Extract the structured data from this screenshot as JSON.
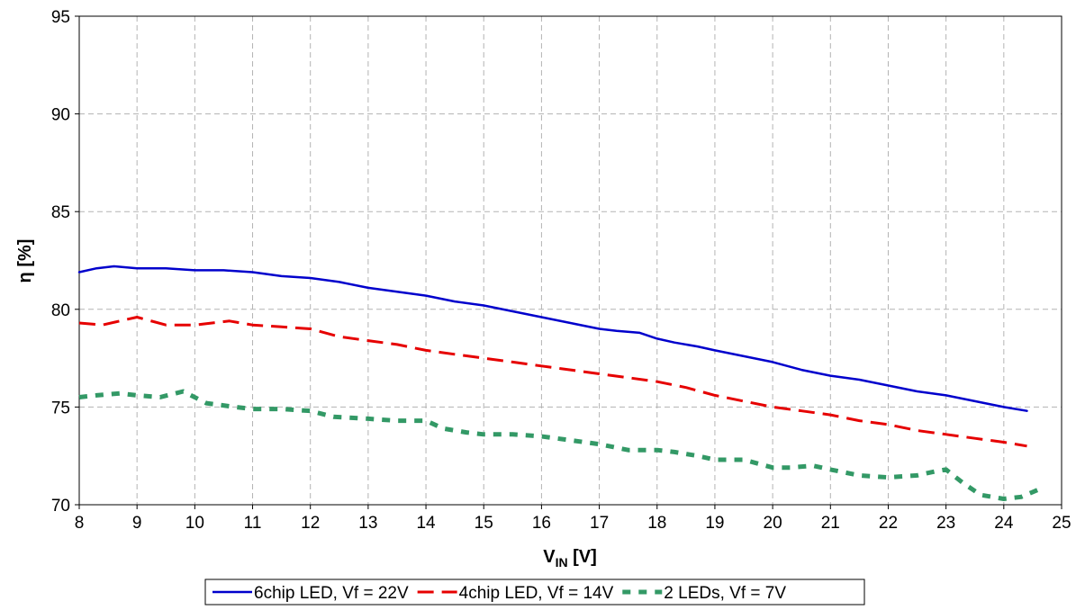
{
  "chart_data": {
    "type": "line",
    "title": "",
    "xlabel": {
      "main": "V",
      "sub": "IN",
      "suffix": " [V]"
    },
    "ylabel": "η [%]",
    "xlim": [
      8,
      25
    ],
    "ylim": [
      70,
      95
    ],
    "xticks": [
      8,
      9,
      10,
      11,
      12,
      13,
      14,
      15,
      16,
      17,
      18,
      19,
      20,
      21,
      22,
      23,
      24,
      25
    ],
    "yticks": [
      70,
      75,
      80,
      85,
      90,
      95
    ],
    "grid": true,
    "legend_position": "bottom",
    "series": [
      {
        "name": "6chip LED, Vf = 22V",
        "color": "#0000cc",
        "style": "solid",
        "x": [
          8.0,
          8.3,
          8.6,
          9.0,
          9.5,
          10.0,
          10.5,
          11.0,
          11.5,
          12.0,
          12.5,
          13.0,
          13.5,
          14.0,
          14.5,
          15.0,
          15.5,
          16.0,
          16.5,
          17.0,
          17.3,
          17.7,
          18.0,
          18.3,
          18.7,
          19.0,
          19.5,
          20.0,
          20.5,
          21.0,
          21.5,
          22.0,
          22.5,
          23.0,
          23.5,
          24.0,
          24.4
        ],
        "y": [
          81.9,
          82.1,
          82.2,
          82.1,
          82.1,
          82.0,
          82.0,
          81.9,
          81.7,
          81.6,
          81.4,
          81.1,
          80.9,
          80.7,
          80.4,
          80.2,
          79.9,
          79.6,
          79.3,
          79.0,
          78.9,
          78.8,
          78.5,
          78.3,
          78.1,
          77.9,
          77.6,
          77.3,
          76.9,
          76.6,
          76.4,
          76.1,
          75.8,
          75.6,
          75.3,
          75.0,
          74.8
        ]
      },
      {
        "name": "4chip LED, Vf = 14V",
        "color": "#e60000",
        "style": "dashed",
        "x": [
          8.0,
          8.4,
          8.7,
          9.0,
          9.5,
          10.0,
          10.6,
          11.0,
          11.5,
          12.0,
          12.5,
          13.0,
          13.5,
          14.0,
          14.5,
          15.0,
          15.5,
          16.0,
          16.5,
          17.0,
          17.5,
          18.0,
          18.5,
          19.0,
          19.5,
          20.0,
          20.5,
          21.0,
          21.5,
          22.0,
          22.5,
          23.0,
          23.5,
          24.0,
          24.4
        ],
        "y": [
          79.3,
          79.2,
          79.4,
          79.6,
          79.2,
          79.2,
          79.4,
          79.2,
          79.1,
          79.0,
          78.6,
          78.4,
          78.2,
          77.9,
          77.7,
          77.5,
          77.3,
          77.1,
          76.9,
          76.7,
          76.5,
          76.3,
          76.0,
          75.6,
          75.3,
          75.0,
          74.8,
          74.6,
          74.3,
          74.1,
          73.8,
          73.6,
          73.4,
          73.2,
          73.0
        ]
      },
      {
        "name": "2 LEDs, Vf = 7V",
        "color": "#339966",
        "style": "dotted",
        "x": [
          8.0,
          8.3,
          8.7,
          9.0,
          9.4,
          9.8,
          10.2,
          10.7,
          11.0,
          11.5,
          12.0,
          12.4,
          13.0,
          13.5,
          14.0,
          14.3,
          14.7,
          15.0,
          15.5,
          16.0,
          16.5,
          17.0,
          17.5,
          18.0,
          18.3,
          18.7,
          19.0,
          19.5,
          20.0,
          20.3,
          20.7,
          21.0,
          21.5,
          22.0,
          22.5,
          22.8,
          23.0,
          23.3,
          23.6,
          24.0,
          24.3,
          24.7
        ],
        "y": [
          75.5,
          75.6,
          75.7,
          75.6,
          75.5,
          75.8,
          75.2,
          75.0,
          74.9,
          74.9,
          74.8,
          74.5,
          74.4,
          74.3,
          74.3,
          73.9,
          73.7,
          73.6,
          73.6,
          73.5,
          73.3,
          73.1,
          72.8,
          72.8,
          72.7,
          72.5,
          72.3,
          72.3,
          71.9,
          71.9,
          72.0,
          71.8,
          71.5,
          71.4,
          71.5,
          71.7,
          71.8,
          71.1,
          70.5,
          70.3,
          70.4,
          70.9
        ]
      }
    ]
  }
}
